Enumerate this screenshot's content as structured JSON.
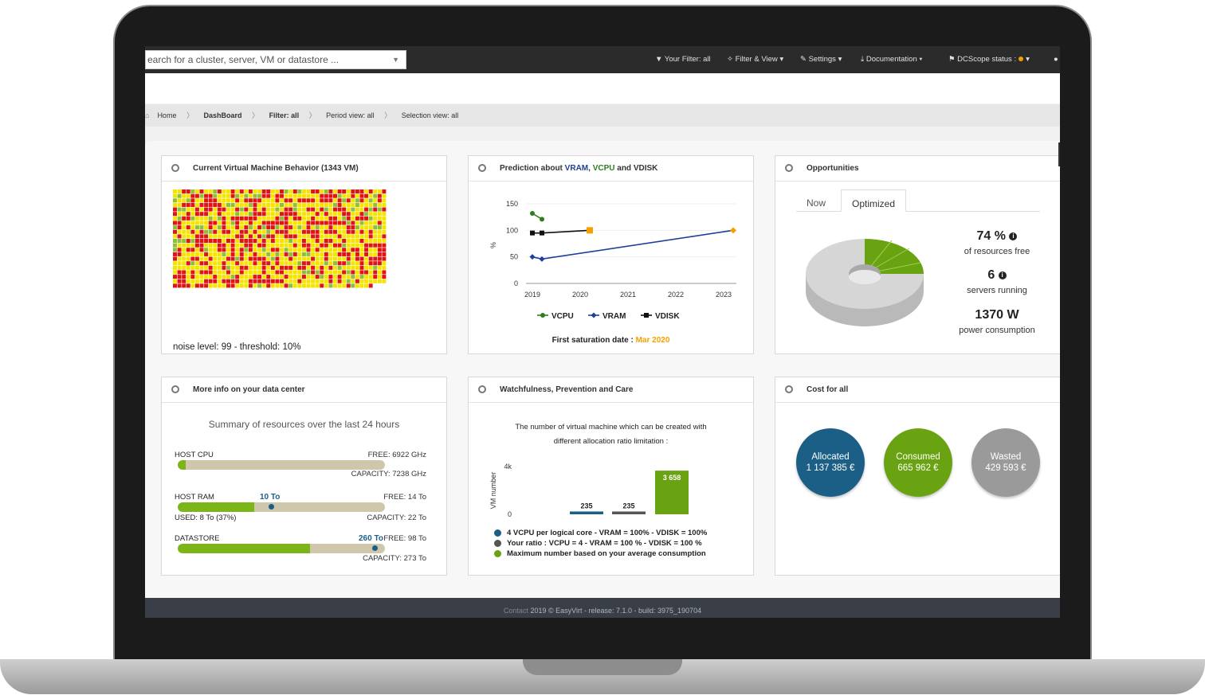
{
  "topbar": {
    "search_placeholder": "earch for a cluster, server, VM or datastore ...",
    "filter": "▼ Your Filter: all",
    "filter_view": "✧ Filter & View ▾",
    "settings": "✎ Settings ▾",
    "documentation": "⤓ Documentation ▾",
    "dcscope_status": "⚑ DCScope status :"
  },
  "breadcrumb": {
    "home": "Home",
    "dashboard": "DashBoard",
    "filter": "Filter: all",
    "period": "Period view: all",
    "selection": "Selection view: all"
  },
  "panels": {
    "vm_behavior": {
      "title": "Current Virtual Machine Behavior (1343 VM)",
      "noise": "noise level: 99 - threshold: 10%"
    },
    "prediction": {
      "title_prefix": "Prediction about ",
      "vram": "VRAM",
      "comma": ", ",
      "vcpu": "VCPU",
      "and": " and ",
      "vdisk": "VDISK",
      "saturation_label": "First saturation date : ",
      "saturation_date": "Mar 2020"
    },
    "opportunities": {
      "title": "Opportunities",
      "tab_now": "Now",
      "tab_optimized": "Optimized",
      "resources_free_value": "74 %",
      "resources_free_label": "of resources free",
      "servers_value": "6",
      "servers_label": "servers running",
      "power_value": "1370 W",
      "power_label": "power consumption"
    },
    "more_info": {
      "title": "More info on your data center",
      "summary": "Summary of resources over the last 24 hours",
      "host_cpu": {
        "label": "HOST CPU",
        "free": "FREE: 6922 GHz",
        "capacity": "CAPACITY: 7238 GHz",
        "used_fraction": 0.04
      },
      "host_ram": {
        "label": "HOST RAM",
        "free": "FREE: 14 To",
        "capacity": "CAPACITY: 22 To",
        "used": "USED: 8 To (37%)",
        "used_fraction": 0.37,
        "marker": "10 To",
        "marker_fraction": 0.45
      },
      "datastore": {
        "label": "DATASTORE",
        "free": "FREE: 98 To",
        "capacity": "CAPACITY: 273 To",
        "used_fraction": 0.64,
        "marker": "260 To",
        "marker_fraction": 0.95
      }
    },
    "watchfulness": {
      "title": "Watchfulness, Prevention and Care",
      "desc_line1": "The number of virtual machine which can be created with",
      "desc_line2": "different allocation ratio limitation :",
      "legend1": "4 VCPU per logical core - VRAM = 100% - VDISK = 100%",
      "legend2": "Your ratio : VCPU = 4 - VRAM = 100 % - VDISK = 100 %",
      "legend3": "Maximum number based on your average consumption"
    },
    "cost": {
      "title": "Cost for all",
      "allocated_label": "Allocated",
      "allocated_value": "1 137 385 €",
      "consumed_label": "Consumed",
      "consumed_value": "665 962 €",
      "wasted_label": "Wasted",
      "wasted_value": "429 593 €"
    }
  },
  "footer": {
    "contact": "Contact",
    "text": "2019 © EasyVirt - release: 7.1.0 - build: 3975_190704"
  },
  "colors": {
    "vcpu": "#2e7d1e",
    "vram": "#1f3f99",
    "vdisk": "#111111",
    "saturation": "#f5a000",
    "allocated": "#1c5f86",
    "consumed": "#6aa312",
    "wasted": "#9a9a9a"
  },
  "chart_data": [
    {
      "type": "line",
      "ylabel": "%",
      "ylim": [
        0,
        150
      ],
      "yticks": [
        0,
        50,
        100,
        150
      ],
      "xticks": [
        2019,
        2020,
        2021,
        2022,
        2023
      ],
      "series": [
        {
          "name": "VCPU",
          "points": [
            [
              2019.0,
              132
            ],
            [
              2019.2,
              121
            ]
          ]
        },
        {
          "name": "VRAM",
          "points": [
            [
              2019.0,
              50
            ],
            [
              2019.2,
              46
            ],
            [
              2023.2,
              100
            ]
          ]
        },
        {
          "name": "VDISK",
          "points": [
            [
              2019.0,
              95
            ],
            [
              2019.2,
              95
            ],
            [
              2020.2,
              100
            ]
          ]
        }
      ],
      "saturation_point": [
        2020.2,
        100
      ],
      "forecast_point": [
        2023.2,
        100
      ]
    },
    {
      "type": "bar",
      "ylabel": "VM number",
      "yticks_labels": [
        "0",
        "4k"
      ],
      "ylim": [
        0,
        4000
      ],
      "categories": [
        "4 VCPU per logical core",
        "Your ratio",
        "Maximum number based on your average consumption"
      ],
      "values": [
        235,
        235,
        3658
      ],
      "value_labels": [
        "235",
        "235",
        "3 658"
      ]
    },
    {
      "type": "pie",
      "slices": [
        {
          "label": "free",
          "value": 74
        },
        {
          "label": "used",
          "value": 26
        }
      ]
    }
  ]
}
